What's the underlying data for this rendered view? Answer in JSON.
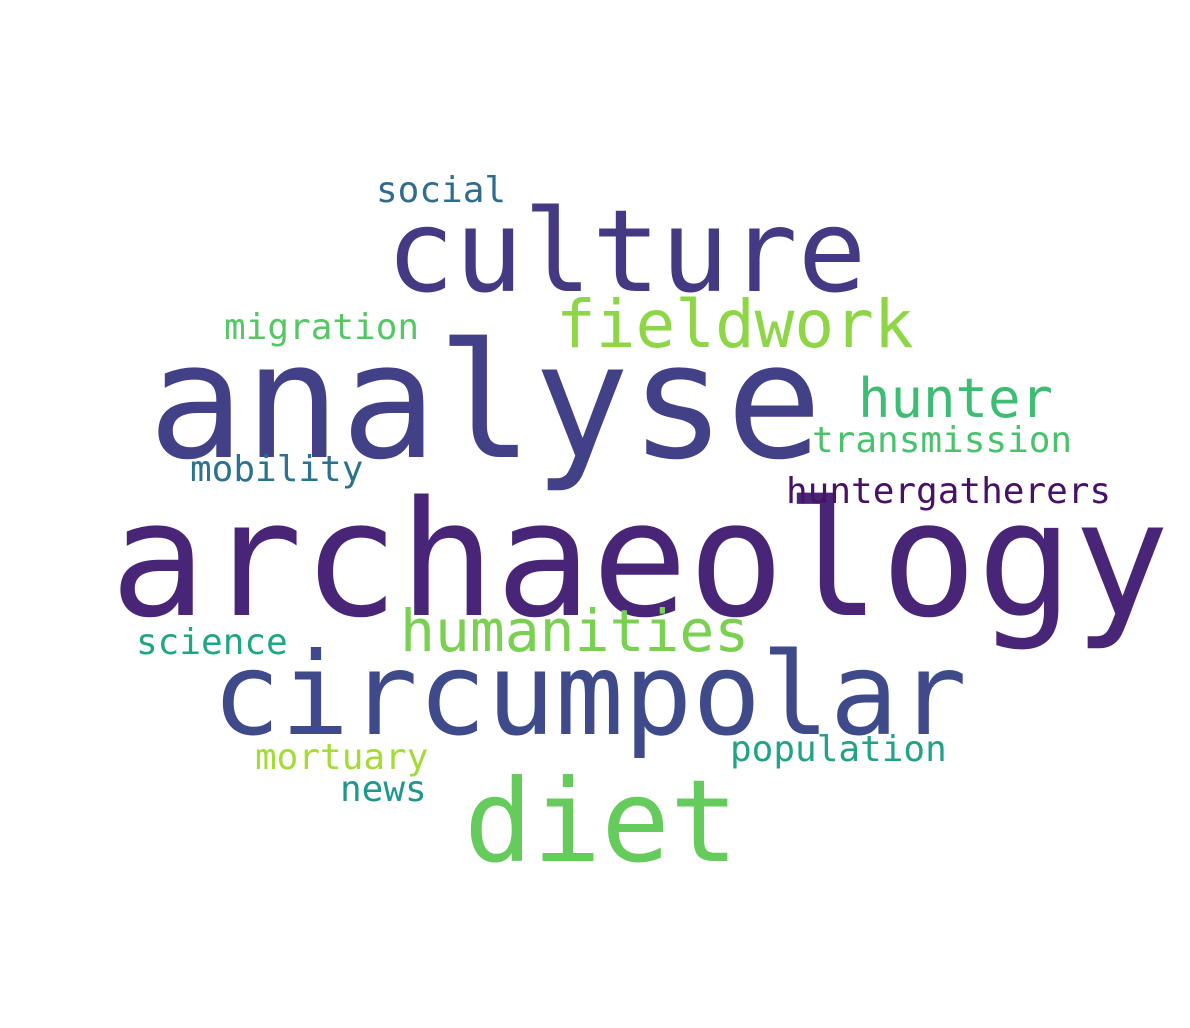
{
  "words": {
    "archaeology": {
      "text": "archaeology",
      "color": "#482576"
    },
    "analyse": {
      "text": "analyse",
      "color": "#424086"
    },
    "circumpolar": {
      "text": "circumpolar",
      "color": "#3e4a89"
    },
    "culture": {
      "text": "culture",
      "color": "#443a83"
    },
    "diet": {
      "text": "diet",
      "color": "#66cb5d"
    },
    "fieldwork": {
      "text": "fieldwork",
      "color": "#8ed645"
    },
    "humanities": {
      "text": "humanities",
      "color": "#7ad151"
    },
    "hunter": {
      "text": "hunter",
      "color": "#3dbc74"
    },
    "transmission": {
      "text": "transmission",
      "color": "#4ac16d"
    },
    "huntergatherers": {
      "text": "huntergatherers",
      "color": "#471164"
    },
    "migration": {
      "text": "migration",
      "color": "#56c667"
    },
    "social": {
      "text": "social",
      "color": "#2f6c8e"
    },
    "mobility": {
      "text": "mobility",
      "color": "#2c728e"
    },
    "science": {
      "text": "science",
      "color": "#21a685"
    },
    "mortuary": {
      "text": "mortuary",
      "color": "#a5db36"
    },
    "news": {
      "text": "news",
      "color": "#1f988b"
    },
    "population": {
      "text": "population",
      "color": "#20a386"
    }
  }
}
